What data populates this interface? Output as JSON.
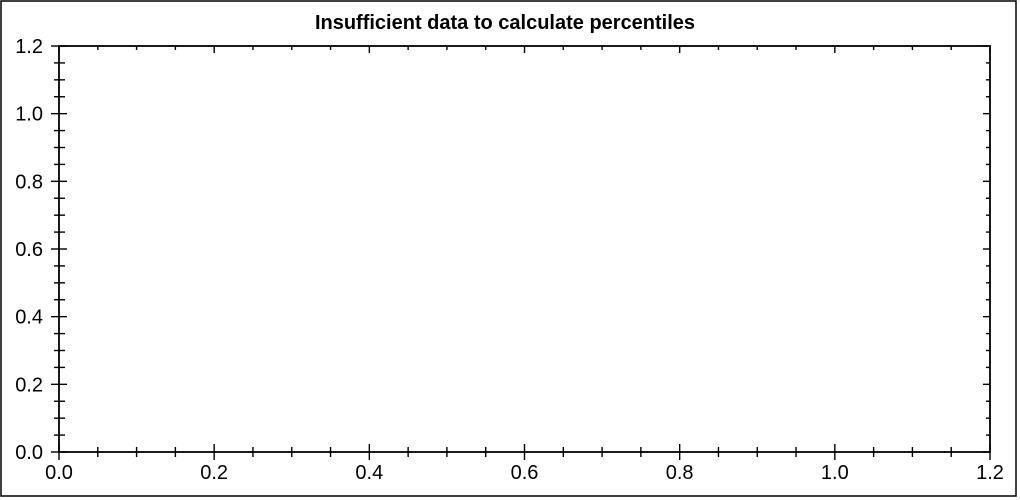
{
  "window": {
    "background": "#ffffff",
    "border_color": "#000000"
  },
  "chart_data": {
    "type": "scatter",
    "title": "Insufficient data to calculate percentiles",
    "series": [],
    "points": [],
    "xlabel": "",
    "ylabel": "",
    "xlim": [
      0.0,
      1.2
    ],
    "ylim": [
      0.0,
      1.2
    ],
    "x_major_ticks": [
      0.0,
      0.2,
      0.4,
      0.6,
      0.8,
      1.0,
      1.2
    ],
    "y_major_ticks": [
      0.0,
      0.2,
      0.4,
      0.6,
      0.8,
      1.0,
      1.2
    ],
    "x_tick_labels": [
      "0.0",
      "0.2",
      "0.4",
      "0.6",
      "0.8",
      "1.0",
      "1.2"
    ],
    "y_tick_labels": [
      "0.0",
      "0.2",
      "0.4",
      "0.6",
      "0.8",
      "1.0",
      "1.2"
    ],
    "minor_divisions_per_major": 4,
    "grid": false,
    "legend": null,
    "frame": true,
    "axis_color": "#000000",
    "text_color": "#000000"
  }
}
